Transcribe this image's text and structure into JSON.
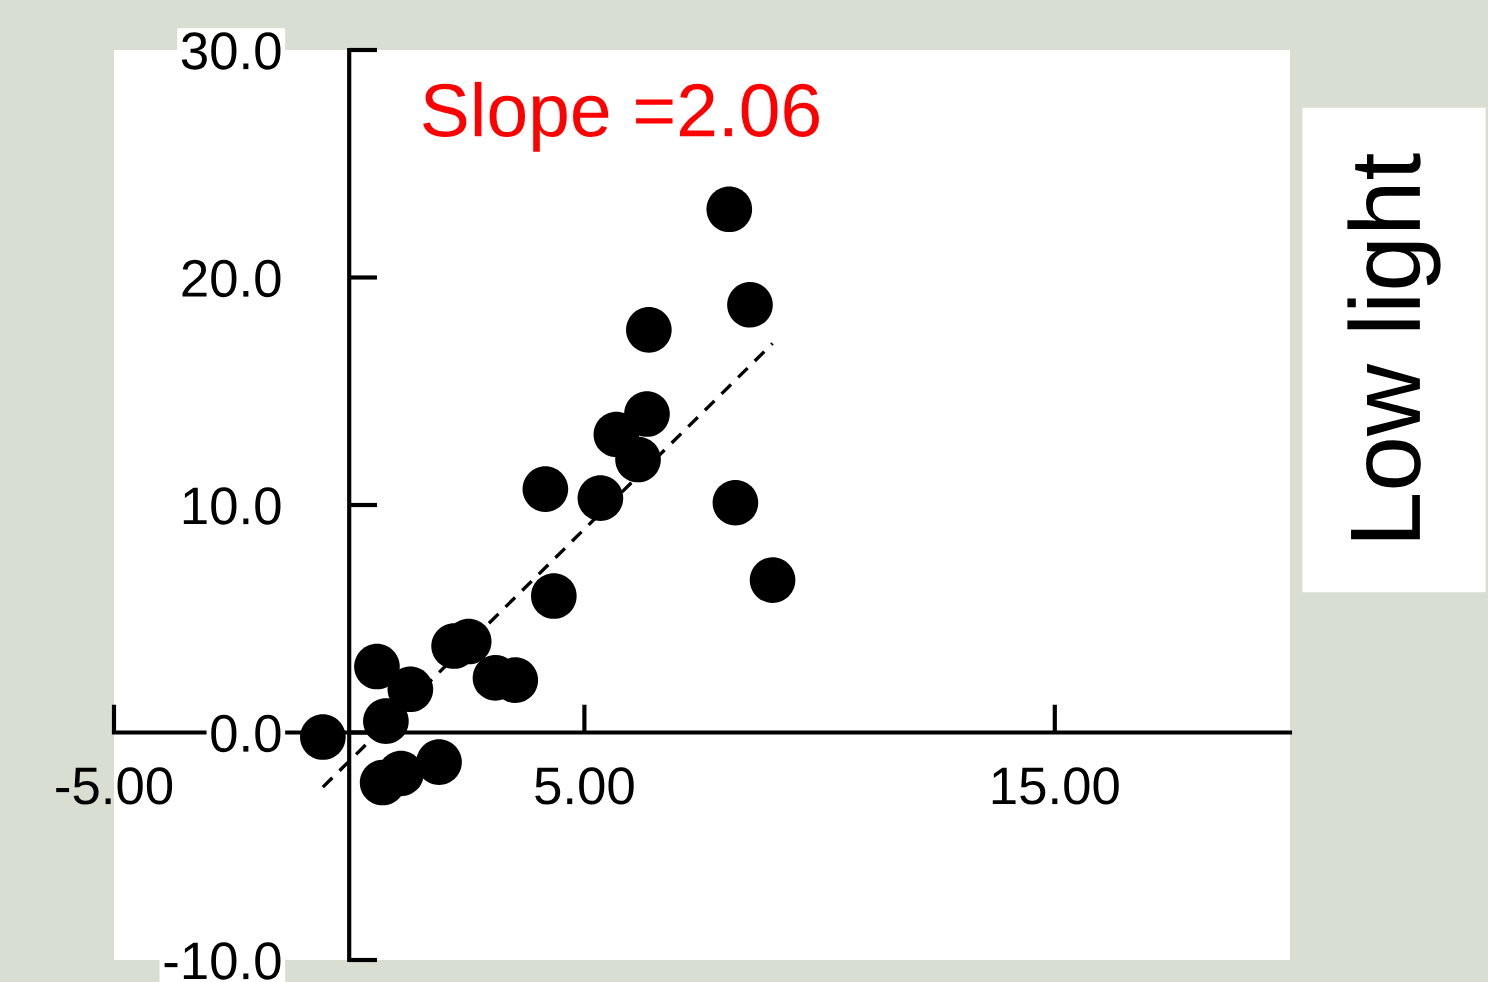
{
  "chart_data": {
    "type": "scatter",
    "annotations": [
      "Slope =2.06",
      "Low light"
    ],
    "series": [
      {
        "color": "#000000",
        "marker": "circle",
        "x": [
          8.08,
          8.52,
          6.37,
          6.33,
          5.68,
          6.14,
          4.17,
          5.34,
          8.21,
          9.0,
          4.35,
          2.23,
          2.54,
          0.59,
          1.3,
          3.11,
          3.53,
          0.78,
          -0.56,
          0.71,
          1.1,
          1.91
        ],
        "values": [
          23.0,
          18.8,
          17.7,
          14.0,
          13.1,
          12.0,
          10.7,
          10.3,
          10.1,
          6.7,
          6.0,
          3.8,
          4.0,
          2.9,
          1.9,
          2.4,
          2.3,
          0.5,
          -0.2,
          -2.2,
          -1.8,
          -1.3
        ]
      },
      {
        "type": "line",
        "color": "#000000",
        "line_style": "dashed",
        "marker": "none",
        "x": [
          -0.56,
          9.0
        ],
        "values": [
          -2.4,
          17.1
        ]
      }
    ],
    "xlim": [
      -5,
      20
    ],
    "xticks": [
      {
        "value": -5,
        "label": "-5.00"
      },
      {
        "value": 5,
        "label": "5.00"
      },
      {
        "value": 15,
        "label": "15.00"
      }
    ],
    "ylim": [
      -10,
      30
    ],
    "yticks": [
      {
        "value": -10,
        "label": "-10.0"
      },
      {
        "value": 0,
        "label": "0.0"
      },
      {
        "value": 10,
        "label": "10.0"
      },
      {
        "value": 20,
        "label": "20.0"
      },
      {
        "value": 30,
        "label": "30.0"
      }
    ],
    "grid": false,
    "legend": false
  }
}
